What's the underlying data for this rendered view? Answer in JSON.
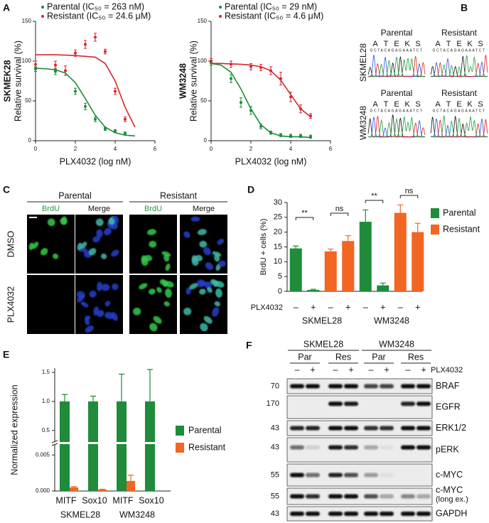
{
  "panel_labels": [
    "A",
    "B",
    "C",
    "D",
    "E",
    "F"
  ],
  "chart_data": [
    {
      "type": "scatter",
      "cell_line": "SKMEK28",
      "ylabel": "Relative survival (%)",
      "xlabel": "PLX4032 (log nM)",
      "xlim": [
        0,
        6
      ],
      "xticks": [
        0,
        2,
        4,
        6
      ],
      "ylim": [
        0,
        150
      ],
      "yticks": [
        0,
        50,
        100,
        150
      ],
      "series": [
        {
          "name": "Parental (IC₅₀ = 263 nM)",
          "color": "#1f8b3b",
          "x": [
            0,
            1,
            2,
            2.5,
            3,
            3.5,
            4,
            4.5
          ],
          "values": [
            90,
            87,
            62,
            43,
            27,
            15,
            12,
            9
          ],
          "errors": [
            3,
            4,
            4,
            4,
            3,
            2,
            2,
            2
          ]
        },
        {
          "name": "Resistant (IC₅₀ = 24.6 μM)",
          "color": "#d7262b",
          "x": [
            0,
            1,
            1.5,
            2,
            2.5,
            3,
            3.5,
            4,
            4.5
          ],
          "values": [
            96,
            95,
            88,
            110,
            121,
            130,
            112,
            62,
            27
          ],
          "errors": [
            4,
            5,
            6,
            4,
            5,
            5,
            3,
            4,
            3
          ]
        }
      ],
      "curves": [
        {
          "color": "#1f8b3b",
          "x": [
            0,
            0.5,
            1,
            1.5,
            2,
            2.5,
            3,
            3.5,
            4,
            4.5,
            5
          ],
          "values": [
            91,
            90.5,
            89,
            85,
            73,
            53,
            32,
            17,
            10,
            7,
            6
          ]
        },
        {
          "color": "#d7262b",
          "x": [
            0,
            0.5,
            1,
            1.5,
            2,
            2.5,
            3,
            3.5,
            4,
            4.5,
            5
          ],
          "values": [
            108,
            108,
            108,
            107.5,
            107,
            106,
            105,
            97,
            75,
            42,
            17
          ]
        }
      ]
    },
    {
      "type": "scatter",
      "cell_line": "WM3248",
      "ylabel": "Relative survival (%)",
      "xlabel": "PLX4032 (log nM)",
      "xlim": [
        0,
        6
      ],
      "xticks": [
        0,
        2,
        4,
        6
      ],
      "ylim": [
        0,
        150
      ],
      "yticks": [
        0,
        50,
        100,
        150
      ],
      "series": [
        {
          "name": "Parental (IC₅₀ = 29 nM)",
          "color": "#1f8b3b",
          "x": [
            0,
            1,
            1.5,
            2,
            2.5,
            3,
            3.5,
            4,
            4.5,
            5
          ],
          "values": [
            98,
            78,
            48,
            38,
            18,
            10,
            7,
            6,
            6,
            5
          ],
          "errors": [
            3,
            5,
            6,
            5,
            3,
            2,
            2,
            2,
            2,
            2
          ]
        },
        {
          "name": "Resistant (IC₅₀ = 4.6 μM)",
          "color": "#d7262b",
          "x": [
            0,
            1,
            2,
            2.5,
            3,
            3.5,
            4,
            4.5,
            5
          ],
          "values": [
            100,
            96,
            93,
            92,
            88,
            78,
            55,
            40,
            31
          ],
          "errors": [
            3,
            4,
            4,
            4,
            5,
            8,
            6,
            5,
            3
          ]
        }
      ],
      "curves": [
        {
          "color": "#1f8b3b",
          "x": [
            0,
            0.5,
            1,
            1.5,
            2,
            2.5,
            3,
            3.5,
            4,
            4.5,
            5
          ],
          "values": [
            97,
            95,
            86,
            65,
            40,
            20,
            10,
            6,
            5,
            5,
            4
          ]
        },
        {
          "color": "#d7262b",
          "x": [
            0,
            0.5,
            1,
            1.5,
            2,
            2.5,
            3,
            3.5,
            4,
            4.5,
            5
          ],
          "values": [
            97,
            97,
            96.5,
            96,
            95,
            93,
            88,
            76,
            58,
            40,
            30
          ]
        }
      ]
    },
    {
      "type": "bar",
      "ylabel": "BrdU + cells (%)",
      "ylim": [
        0,
        30
      ],
      "yticks": [
        0,
        5,
        10,
        15,
        20,
        25,
        30
      ],
      "row_label": "PLX4032",
      "categories": [
        "–",
        "+",
        "–",
        "+",
        "–",
        "+",
        "–",
        "+"
      ],
      "groups": [
        "SKMEL28",
        "WM3248"
      ],
      "series": [
        {
          "name": "Parental",
          "color": "#1f8b3b",
          "values": [
            14.5,
            0.5,
            null,
            null,
            23.5,
            2,
            null,
            null
          ],
          "errors": [
            0.8,
            0.2,
            null,
            null,
            4,
            0.8,
            null,
            null
          ]
        },
        {
          "name": "Resistant",
          "color": "#f26522",
          "values": [
            null,
            null,
            13.5,
            17,
            null,
            null,
            26.5,
            20
          ],
          "errors": [
            null,
            null,
            0.8,
            1.8,
            null,
            null,
            2.7,
            3
          ]
        }
      ],
      "annotations": [
        "**",
        "ns",
        "**",
        "ns"
      ]
    },
    {
      "type": "broken_bar",
      "ylabel": "Normalized expression",
      "categories": [
        "MITF",
        "Sox10",
        "MITF",
        "Sox10"
      ],
      "groups": [
        "SKMEL28",
        "WM3248"
      ],
      "ylim": [
        0,
        0.0065
      ],
      "yticks": [
        {
          "value": 0,
          "label": "0.000"
        },
        {
          "value": 0.005,
          "label": "0.005"
        }
      ],
      "ylim_upper": [
        0.3,
        1.55
      ],
      "yticks_upper": [
        0.5,
        {
          "value": 1,
          "label": "1.0"
        },
        1.5
      ],
      "series": [
        {
          "name": "Parental",
          "color": "#1f8b3b",
          "values": [
            1,
            1,
            1,
            1
          ],
          "errors": [
            0.12,
            0.09,
            0.47,
            0.55
          ]
        },
        {
          "name": "Resistant",
          "color": "#f26522",
          "values": [
            0.0005,
            0.0002,
            0.0014,
            null
          ],
          "errors": [
            0.0001,
            5e-05,
            0.0008,
            null
          ]
        }
      ]
    }
  ],
  "panel_b": {
    "columns": [
      "Parental",
      "Resistant"
    ],
    "rows": [
      "SKMEL28",
      "WM3248"
    ],
    "codons": [
      "A",
      "T",
      "E",
      "K",
      "S"
    ],
    "sequence": "GCTACAGAGAAATCT"
  },
  "panel_c": {
    "columns": [
      "Parental",
      "Resistant"
    ],
    "channels": [
      "BrdU",
      "Merge"
    ],
    "rows": [
      "DMSO",
      "PLX4032"
    ]
  },
  "panel_f": {
    "cell_lines": [
      "SKMEL28",
      "WM3248"
    ],
    "conditions": [
      "Par",
      "Res"
    ],
    "treatment": [
      "–",
      "+"
    ],
    "treatment_label": "PLX4032",
    "blots": [
      {
        "mw": 70,
        "label": "BRAF"
      },
      {
        "mw": 170,
        "label": "EGFR"
      },
      {
        "mw": 43,
        "label": "ERK1/2"
      },
      {
        "mw": 43,
        "label": "pERK"
      },
      {
        "mw": 55,
        "label": "c-MYC"
      },
      {
        "mw": 55,
        "label": "c-MYC",
        "note": "(long ex.)"
      },
      {
        "mw": 43,
        "label": "GAPDH"
      }
    ]
  }
}
